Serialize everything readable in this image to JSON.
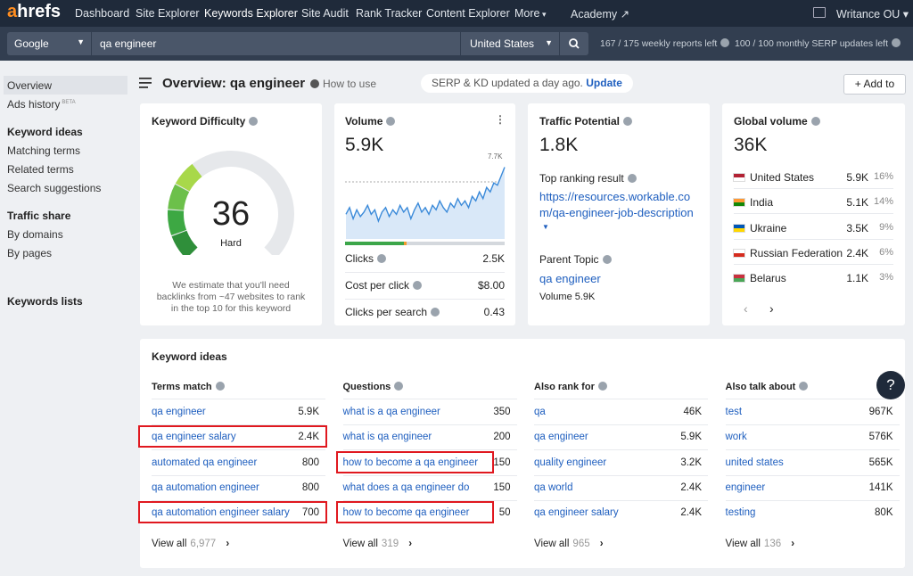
{
  "nav": {
    "logo_a": "a",
    "logo_rest": "hrefs",
    "items": [
      "Dashboard",
      "Site Explorer",
      "Keywords Explorer",
      "Site Audit",
      "Rank Tracker",
      "Content Explorer",
      "More"
    ],
    "academy": "Academy",
    "account": "Writance OU"
  },
  "search": {
    "engine": "Google",
    "query": "qa engineer",
    "country": "United States",
    "reports_left": "167 / 175 weekly reports left",
    "serp_updates_left": "100 / 100 monthly SERP updates left"
  },
  "sidebar": {
    "overview": "Overview",
    "ads_history": "Ads history",
    "beta": "BETA",
    "keyword_ideas": "Keyword ideas",
    "ideas_links": [
      "Matching terms",
      "Related terms",
      "Search suggestions"
    ],
    "traffic_share": "Traffic share",
    "traffic_links": [
      "By domains",
      "By pages"
    ],
    "keywords_lists": "Keywords lists"
  },
  "header": {
    "title": "Overview: qa engineer",
    "how_to_use": "How to use",
    "update_note": "SERP & KD updated a day ago.",
    "update_link": "Update",
    "add_to": "Add to"
  },
  "kd": {
    "title": "Keyword Difficulty",
    "value": 36,
    "scale": [
      0,
      100
    ],
    "label": "Hard",
    "note": "We estimate that you'll need backlinks from ~47 websites to rank in the top 10 for this keyword"
  },
  "volume": {
    "title": "Volume",
    "value": "5.9K",
    "trend_max_label": "7.7K",
    "trend": [
      5.6,
      5.9,
      5.4,
      5.8,
      5.5,
      5.7,
      6.0,
      5.6,
      5.8,
      5.3,
      5.7,
      5.9,
      5.5,
      5.8,
      5.6,
      6.0,
      5.7,
      5.9,
      5.4,
      5.8,
      6.1,
      5.7,
      5.9,
      5.6,
      6.0,
      5.8,
      6.2,
      5.9,
      5.7,
      6.1,
      5.9,
      6.3,
      6.0,
      6.2,
      5.9,
      6.4,
      6.2,
      6.6,
      6.3,
      6.8,
      6.6,
      7.0,
      6.9,
      7.3,
      7.7
    ],
    "trend_ylim": [
      4.5,
      8
    ],
    "metrics": [
      [
        "Clicks",
        "2.5K"
      ],
      [
        "Cost per click",
        "$8.00"
      ],
      [
        "Clicks per search",
        "0.43"
      ]
    ]
  },
  "traffic": {
    "title": "Traffic Potential",
    "value": "1.8K",
    "top_result_label": "Top ranking result",
    "top_result_url": "https://resources.workable.com/qa-engineer-job-description",
    "parent_topic_label": "Parent Topic",
    "parent_topic": "qa engineer",
    "parent_volume": "Volume 5.9K"
  },
  "global": {
    "title": "Global volume",
    "value": "36K",
    "countries": [
      [
        "United States",
        "5.9K",
        "16%"
      ],
      [
        "India",
        "5.1K",
        "14%"
      ],
      [
        "Ukraine",
        "3.5K",
        "9%"
      ],
      [
        "Russian Federation",
        "2.4K",
        "6%"
      ],
      [
        "Belarus",
        "1.1K",
        "3%"
      ]
    ]
  },
  "ideas": {
    "title": "Keyword ideas",
    "view_all": "View all",
    "help": "?",
    "columns": [
      {
        "title": "Terms match",
        "count": "6,977",
        "rows": [
          {
            "term": "qa engineer",
            "volume": "5.9K"
          },
          {
            "term": "qa engineer salary",
            "volume": "2.4K",
            "highlight": "row"
          },
          {
            "term": "automated qa engineer",
            "volume": "800"
          },
          {
            "term": "qa automation engineer",
            "volume": "800"
          },
          {
            "term": "qa automation engineer salary",
            "volume": "700",
            "highlight": "row"
          }
        ]
      },
      {
        "title": "Questions",
        "count": "319",
        "rows": [
          {
            "term": "what is a qa engineer",
            "volume": "350"
          },
          {
            "term": "what is qa engineer",
            "volume": "200"
          },
          {
            "term": "how to become a qa engineer",
            "volume": "150",
            "highlight": "term"
          },
          {
            "term": "what does a qa engineer do",
            "volume": "150"
          },
          {
            "term": "how to become qa engineer",
            "volume": "50",
            "highlight": "term"
          }
        ]
      },
      {
        "title": "Also rank for",
        "count": "965",
        "rows": [
          {
            "term": "qa",
            "volume": "46K"
          },
          {
            "term": "qa engineer",
            "volume": "5.9K"
          },
          {
            "term": "quality engineer",
            "volume": "3.2K"
          },
          {
            "term": "qa world",
            "volume": "2.4K"
          },
          {
            "term": "qa engineer salary",
            "volume": "2.4K"
          }
        ]
      },
      {
        "title": "Also talk about",
        "count": "136",
        "rows": [
          {
            "term": "test",
            "volume": "967K"
          },
          {
            "term": "work",
            "volume": "576K"
          },
          {
            "term": "united states",
            "volume": "565K"
          },
          {
            "term": "engineer",
            "volume": "141K"
          },
          {
            "term": "testing",
            "volume": "80K"
          }
        ]
      }
    ]
  }
}
